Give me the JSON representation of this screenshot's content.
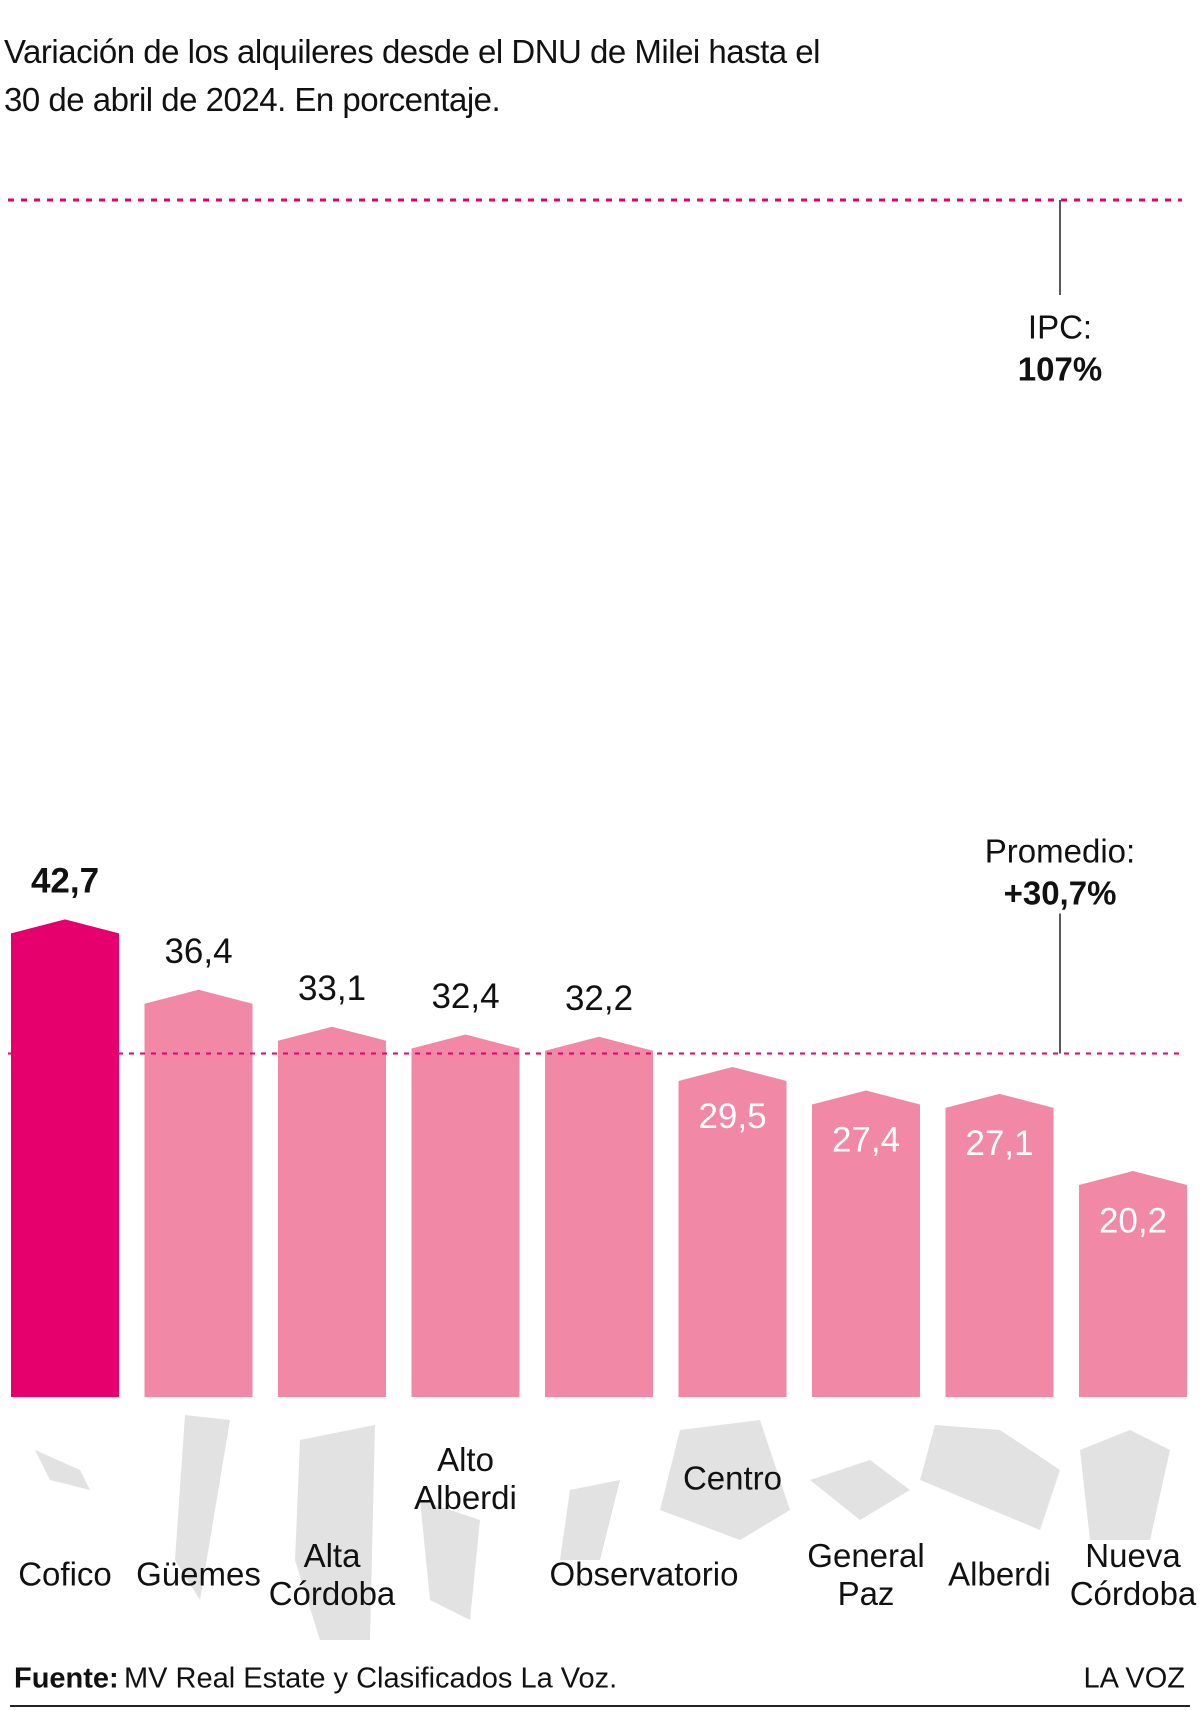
{
  "chart_data": {
    "type": "bar",
    "title": "Variación de los alquileres desde el DNU de Milei hasta el 30 de abril de 2024. En porcentaje.",
    "categories": [
      "Cofico",
      "Güemes",
      "Alta Córdoba",
      "Alto Alberdi",
      "Observatorio",
      "Centro",
      "General Paz",
      "Alberdi",
      "Nueva Córdoba"
    ],
    "values": [
      42.7,
      36.4,
      33.1,
      32.4,
      32.2,
      29.5,
      27.4,
      27.1,
      20.2
    ],
    "value_labels": [
      "42,7",
      "36,4",
      "33,1",
      "32,4",
      "32,2",
      "29,5",
      "27,4",
      "27,1",
      "20,2"
    ],
    "colors": [
      "#e5006d",
      "#f088a6",
      "#f088a6",
      "#f088a6",
      "#f088a6",
      "#f088a6",
      "#f088a6",
      "#f088a6",
      "#f088a6"
    ],
    "ylim": [
      0,
      107
    ],
    "reference_lines": [
      {
        "label": "IPC:",
        "value": 107,
        "value_label": "107%"
      },
      {
        "label": "Promedio:",
        "value": 30.7,
        "value_label": "+30,7%"
      }
    ],
    "line_color": "#e5006d"
  },
  "footer": {
    "source_label": "Fuente:",
    "source_text": "MV Real Estate y Clasificados La Voz.",
    "brand": "LA VOZ"
  }
}
